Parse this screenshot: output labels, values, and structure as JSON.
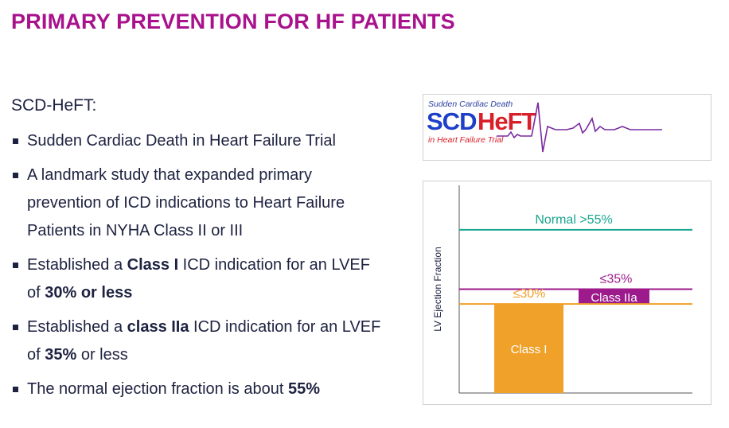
{
  "slide": {
    "title": "PRIMARY PREVENTION FOR HF PATIENTS",
    "section_heading": "SCD-HeFT:"
  },
  "bullets": [
    {
      "text": "Sudden Cardiac Death in Heart Failure Trial"
    },
    {
      "text": "A landmark study that expanded primary prevention of ICD indications to Heart Failure Patients in NYHA Class II or III"
    },
    {
      "pre": "Established a ",
      "bold1": "Class I",
      "mid": " ICD indication for an LVEF of ",
      "bold2": "30% or less",
      "post": ""
    },
    {
      "pre": "Established a ",
      "bold1": "class IIa",
      "mid": " ICD indication for an LVEF of ",
      "bold2": "35%",
      "post": " or less"
    },
    {
      "pre": "The normal ejection fraction is about ",
      "bold1": "55%"
    }
  ],
  "logo": {
    "top_text": "Sudden Cardiac Death",
    "main_text_a": "SCD",
    "main_text_b": "HeFT",
    "bottom_text": "in Heart Failure Trial"
  },
  "chart_data": {
    "type": "bar",
    "ylabel": "LV Ejection Fraction",
    "ylim": [
      0,
      70
    ],
    "thresholds": [
      {
        "label": "Normal >55%",
        "value": 55,
        "color": "#1aa58f"
      },
      {
        "label": "≤35%",
        "value": 35,
        "color": "#9c1a8c"
      },
      {
        "label": "≤30%",
        "value": 30,
        "color": "#f0a12a"
      }
    ],
    "bars": [
      {
        "label": "Class I",
        "low": 0,
        "high": 30,
        "color": "#f0a12a"
      },
      {
        "label": "Class IIa",
        "low": 30,
        "high": 35,
        "color": "#9c1a8c"
      }
    ]
  },
  "colors": {
    "title": "#a8128c",
    "text": "#1d2240"
  }
}
